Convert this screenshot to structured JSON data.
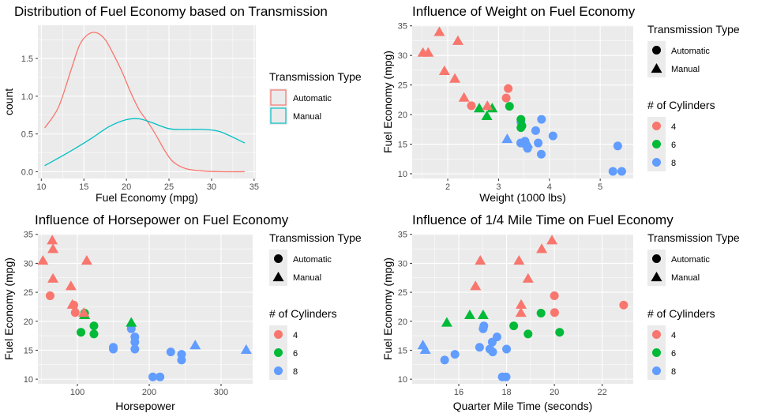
{
  "colors": {
    "automatic": "#F8766D",
    "manual": "#00BFC4",
    "cyl4": "#F8766D",
    "cyl6": "#00BA38",
    "cyl8": "#619CFF",
    "panel": "#EBEBEB",
    "grid": "#FFFFFF"
  },
  "chart_data": [
    {
      "type": "area",
      "title": "Distribution of Fuel Economy based on Transmission",
      "xlabel": "Fuel Economy (mpg)",
      "ylabel": "count",
      "xlim": [
        9.6,
        35.2
      ],
      "ylim": [
        -0.09,
        1.94
      ],
      "xticks": [
        10,
        15,
        20,
        25,
        30,
        35
      ],
      "yticks": [
        0.0,
        0.5,
        1.0,
        1.5
      ],
      "ytick_labels": [
        "0.0",
        "0.5",
        "1.0",
        "1.5"
      ],
      "legend": {
        "title": "Transmission Type",
        "entries": [
          {
            "label": "Automatic",
            "color": "#F8766D"
          },
          {
            "label": "Manual",
            "color": "#00BFC4"
          }
        ]
      },
      "series": [
        {
          "name": "Automatic",
          "color": "#F8766D",
          "x": [
            10.4,
            12,
            13.5,
            14.5,
            15.5,
            16.5,
            17.5,
            18.5,
            19.5,
            20.5,
            21.5,
            22.5,
            23.5,
            24.5,
            25.5,
            27,
            29,
            31,
            33.9
          ],
          "y": [
            0.58,
            0.85,
            1.35,
            1.68,
            1.82,
            1.84,
            1.75,
            1.55,
            1.32,
            1.05,
            0.82,
            0.66,
            0.48,
            0.28,
            0.13,
            0.04,
            0.01,
            0.0,
            0.0
          ]
        },
        {
          "name": "Manual",
          "color": "#00BFC4",
          "x": [
            10.4,
            12,
            14,
            16,
            18,
            20,
            21.5,
            23,
            25,
            27,
            29,
            31,
            33.9
          ],
          "y": [
            0.08,
            0.18,
            0.31,
            0.45,
            0.6,
            0.69,
            0.7,
            0.65,
            0.57,
            0.56,
            0.56,
            0.53,
            0.38
          ]
        }
      ]
    },
    {
      "type": "scatter",
      "title": "Influence of Weight on Fuel Economy",
      "xlabel": "Weight (1000 lbs)",
      "ylabel": "Fuel Economy (mpg)",
      "xlim": [
        1.3,
        5.65
      ],
      "ylim": [
        9.2,
        35.1
      ],
      "xticks": [
        2,
        3,
        4,
        5
      ],
      "yticks": [
        10,
        15,
        20,
        25,
        30,
        35
      ],
      "legend": {
        "shape_title": "Transmission Type",
        "shape_entries": [
          "Automatic",
          "Manual"
        ],
        "color_title": "# of Cylinders",
        "color_entries": [
          "4",
          "6",
          "8"
        ]
      },
      "points": [
        {
          "x": 2.62,
          "y": 21.0,
          "cyl": 6,
          "am": 1
        },
        {
          "x": 2.875,
          "y": 21.0,
          "cyl": 6,
          "am": 1
        },
        {
          "x": 2.32,
          "y": 22.8,
          "cyl": 4,
          "am": 1
        },
        {
          "x": 3.215,
          "y": 21.4,
          "cyl": 6,
          "am": 0
        },
        {
          "x": 3.44,
          "y": 18.7,
          "cyl": 8,
          "am": 0
        },
        {
          "x": 3.46,
          "y": 18.1,
          "cyl": 6,
          "am": 0
        },
        {
          "x": 3.57,
          "y": 14.3,
          "cyl": 8,
          "am": 0
        },
        {
          "x": 3.19,
          "y": 24.4,
          "cyl": 4,
          "am": 0
        },
        {
          "x": 3.15,
          "y": 22.8,
          "cyl": 4,
          "am": 0
        },
        {
          "x": 3.44,
          "y": 19.2,
          "cyl": 6,
          "am": 0
        },
        {
          "x": 3.44,
          "y": 17.8,
          "cyl": 6,
          "am": 0
        },
        {
          "x": 4.07,
          "y": 16.4,
          "cyl": 8,
          "am": 0
        },
        {
          "x": 3.73,
          "y": 17.3,
          "cyl": 8,
          "am": 0
        },
        {
          "x": 3.78,
          "y": 15.2,
          "cyl": 8,
          "am": 0
        },
        {
          "x": 5.25,
          "y": 10.4,
          "cyl": 8,
          "am": 0
        },
        {
          "x": 5.424,
          "y": 10.4,
          "cyl": 8,
          "am": 0
        },
        {
          "x": 5.345,
          "y": 14.7,
          "cyl": 8,
          "am": 0
        },
        {
          "x": 2.2,
          "y": 32.4,
          "cyl": 4,
          "am": 1
        },
        {
          "x": 1.615,
          "y": 30.4,
          "cyl": 4,
          "am": 1
        },
        {
          "x": 1.835,
          "y": 33.9,
          "cyl": 4,
          "am": 1
        },
        {
          "x": 2.465,
          "y": 21.5,
          "cyl": 4,
          "am": 0
        },
        {
          "x": 3.52,
          "y": 15.5,
          "cyl": 8,
          "am": 0
        },
        {
          "x": 3.435,
          "y": 15.2,
          "cyl": 8,
          "am": 0
        },
        {
          "x": 3.84,
          "y": 13.3,
          "cyl": 8,
          "am": 0
        },
        {
          "x": 3.845,
          "y": 19.2,
          "cyl": 8,
          "am": 0
        },
        {
          "x": 1.935,
          "y": 27.3,
          "cyl": 4,
          "am": 1
        },
        {
          "x": 2.14,
          "y": 26.0,
          "cyl": 4,
          "am": 1
        },
        {
          "x": 1.513,
          "y": 30.4,
          "cyl": 4,
          "am": 1
        },
        {
          "x": 3.17,
          "y": 15.8,
          "cyl": 8,
          "am": 1
        },
        {
          "x": 2.77,
          "y": 19.7,
          "cyl": 6,
          "am": 1
        },
        {
          "x": 3.57,
          "y": 15.0,
          "cyl": 8,
          "am": 1
        },
        {
          "x": 2.78,
          "y": 21.4,
          "cyl": 4,
          "am": 1
        }
      ]
    },
    {
      "type": "scatter",
      "title": "Influence of Horsepower on Fuel Economy",
      "xlabel": "Horsepower",
      "ylabel": "Fuel Economy (mpg)",
      "xlim": [
        45,
        344
      ],
      "ylim": [
        9.2,
        35.1
      ],
      "xticks": [
        100,
        200,
        300
      ],
      "yticks": [
        10,
        15,
        20,
        25,
        30,
        35
      ],
      "legend": {
        "shape_title": "Transmission Type",
        "shape_entries": [
          "Automatic",
          "Manual"
        ],
        "color_title": "# of Cylinders",
        "color_entries": [
          "4",
          "6",
          "8"
        ]
      },
      "points": [
        {
          "x": 110,
          "y": 21.0,
          "cyl": 6,
          "am": 1
        },
        {
          "x": 110,
          "y": 21.0,
          "cyl": 6,
          "am": 1
        },
        {
          "x": 93,
          "y": 22.8,
          "cyl": 4,
          "am": 1
        },
        {
          "x": 110,
          "y": 21.4,
          "cyl": 6,
          "am": 0
        },
        {
          "x": 175,
          "y": 18.7,
          "cyl": 8,
          "am": 0
        },
        {
          "x": 105,
          "y": 18.1,
          "cyl": 6,
          "am": 0
        },
        {
          "x": 245,
          "y": 14.3,
          "cyl": 8,
          "am": 0
        },
        {
          "x": 62,
          "y": 24.4,
          "cyl": 4,
          "am": 0
        },
        {
          "x": 95,
          "y": 22.8,
          "cyl": 4,
          "am": 0
        },
        {
          "x": 123,
          "y": 19.2,
          "cyl": 6,
          "am": 0
        },
        {
          "x": 123,
          "y": 17.8,
          "cyl": 6,
          "am": 0
        },
        {
          "x": 180,
          "y": 16.4,
          "cyl": 8,
          "am": 0
        },
        {
          "x": 180,
          "y": 17.3,
          "cyl": 8,
          "am": 0
        },
        {
          "x": 180,
          "y": 15.2,
          "cyl": 8,
          "am": 0
        },
        {
          "x": 205,
          "y": 10.4,
          "cyl": 8,
          "am": 0
        },
        {
          "x": 215,
          "y": 10.4,
          "cyl": 8,
          "am": 0
        },
        {
          "x": 230,
          "y": 14.7,
          "cyl": 8,
          "am": 0
        },
        {
          "x": 66,
          "y": 32.4,
          "cyl": 4,
          "am": 1
        },
        {
          "x": 52,
          "y": 30.4,
          "cyl": 4,
          "am": 1
        },
        {
          "x": 65,
          "y": 33.9,
          "cyl": 4,
          "am": 1
        },
        {
          "x": 97,
          "y": 21.5,
          "cyl": 4,
          "am": 0
        },
        {
          "x": 150,
          "y": 15.5,
          "cyl": 8,
          "am": 0
        },
        {
          "x": 150,
          "y": 15.2,
          "cyl": 8,
          "am": 0
        },
        {
          "x": 245,
          "y": 13.3,
          "cyl": 8,
          "am": 0
        },
        {
          "x": 175,
          "y": 19.2,
          "cyl": 8,
          "am": 0
        },
        {
          "x": 66,
          "y": 27.3,
          "cyl": 4,
          "am": 1
        },
        {
          "x": 91,
          "y": 26.0,
          "cyl": 4,
          "am": 1
        },
        {
          "x": 113,
          "y": 30.4,
          "cyl": 4,
          "am": 1
        },
        {
          "x": 264,
          "y": 15.8,
          "cyl": 8,
          "am": 1
        },
        {
          "x": 175,
          "y": 19.7,
          "cyl": 6,
          "am": 1
        },
        {
          "x": 335,
          "y": 15.0,
          "cyl": 8,
          "am": 1
        },
        {
          "x": 109,
          "y": 21.4,
          "cyl": 4,
          "am": 1
        }
      ]
    },
    {
      "type": "scatter",
      "title": "Influence of 1/4 Mile Time on Fuel Economy",
      "xlabel": "Quarter Mile Time (seconds)",
      "ylabel": "Fuel Economy (mpg)",
      "xlim": [
        14.05,
        23.3
      ],
      "ylim": [
        9.2,
        35.1
      ],
      "xticks": [
        16,
        18,
        20,
        22
      ],
      "yticks": [
        10,
        15,
        20,
        25,
        30,
        35
      ],
      "legend": {
        "shape_title": "Transmission Type",
        "shape_entries": [
          "Automatic",
          "Manual"
        ],
        "color_title": "# of Cylinders",
        "color_entries": [
          "4",
          "6",
          "8"
        ]
      },
      "points": [
        {
          "x": 16.46,
          "y": 21.0,
          "cyl": 6,
          "am": 1
        },
        {
          "x": 17.02,
          "y": 21.0,
          "cyl": 6,
          "am": 1
        },
        {
          "x": 18.61,
          "y": 22.8,
          "cyl": 4,
          "am": 1
        },
        {
          "x": 19.44,
          "y": 21.4,
          "cyl": 6,
          "am": 0
        },
        {
          "x": 17.02,
          "y": 18.7,
          "cyl": 8,
          "am": 0
        },
        {
          "x": 20.22,
          "y": 18.1,
          "cyl": 6,
          "am": 0
        },
        {
          "x": 15.84,
          "y": 14.3,
          "cyl": 8,
          "am": 0
        },
        {
          "x": 20.0,
          "y": 24.4,
          "cyl": 4,
          "am": 0
        },
        {
          "x": 22.9,
          "y": 22.8,
          "cyl": 4,
          "am": 0
        },
        {
          "x": 18.3,
          "y": 19.2,
          "cyl": 6,
          "am": 0
        },
        {
          "x": 18.9,
          "y": 17.8,
          "cyl": 6,
          "am": 0
        },
        {
          "x": 17.4,
          "y": 16.4,
          "cyl": 8,
          "am": 0
        },
        {
          "x": 17.6,
          "y": 17.3,
          "cyl": 8,
          "am": 0
        },
        {
          "x": 18.0,
          "y": 15.2,
          "cyl": 8,
          "am": 0
        },
        {
          "x": 17.98,
          "y": 10.4,
          "cyl": 8,
          "am": 0
        },
        {
          "x": 17.82,
          "y": 10.4,
          "cyl": 8,
          "am": 0
        },
        {
          "x": 17.42,
          "y": 14.7,
          "cyl": 8,
          "am": 0
        },
        {
          "x": 19.47,
          "y": 32.4,
          "cyl": 4,
          "am": 1
        },
        {
          "x": 18.52,
          "y": 30.4,
          "cyl": 4,
          "am": 1
        },
        {
          "x": 19.9,
          "y": 33.9,
          "cyl": 4,
          "am": 1
        },
        {
          "x": 20.01,
          "y": 21.5,
          "cyl": 4,
          "am": 0
        },
        {
          "x": 16.87,
          "y": 15.5,
          "cyl": 8,
          "am": 0
        },
        {
          "x": 17.3,
          "y": 15.2,
          "cyl": 8,
          "am": 0
        },
        {
          "x": 15.41,
          "y": 13.3,
          "cyl": 8,
          "am": 0
        },
        {
          "x": 17.05,
          "y": 19.2,
          "cyl": 8,
          "am": 0
        },
        {
          "x": 18.9,
          "y": 27.3,
          "cyl": 4,
          "am": 1
        },
        {
          "x": 16.7,
          "y": 26.0,
          "cyl": 4,
          "am": 1
        },
        {
          "x": 16.9,
          "y": 30.4,
          "cyl": 4,
          "am": 1
        },
        {
          "x": 14.5,
          "y": 15.8,
          "cyl": 8,
          "am": 1
        },
        {
          "x": 15.5,
          "y": 19.7,
          "cyl": 6,
          "am": 1
        },
        {
          "x": 14.6,
          "y": 15.0,
          "cyl": 8,
          "am": 1
        },
        {
          "x": 18.6,
          "y": 21.4,
          "cyl": 4,
          "am": 1
        }
      ]
    }
  ]
}
